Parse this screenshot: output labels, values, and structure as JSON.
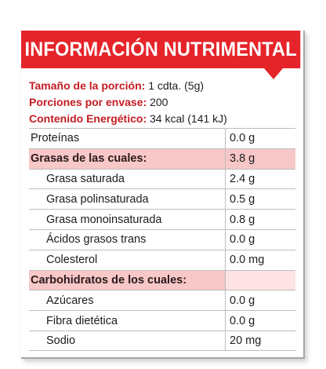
{
  "title": "INFORMACIÓN NUTRIMENTAL",
  "colors": {
    "banner": "#e5242a",
    "label_red": "#c41c22",
    "highlight": "#f8c7c7"
  },
  "header": {
    "serving_label": "Tamaño de la porción:",
    "serving_value": "1 cdta. (5g)",
    "portions_label": "Porciones por envase:",
    "portions_value": "200",
    "energy_label": "Contenido Energético:",
    "energy_value": "34 kcal (141 kJ)"
  },
  "rows": [
    {
      "name": "Proteínas",
      "value": "0.0 g"
    },
    {
      "name": "Grasas de las cuales:",
      "value": "3.8 g"
    },
    {
      "name": "Grasa saturada",
      "value": "2.4 g"
    },
    {
      "name": "Grasa polinsaturada",
      "value": "0.5 g"
    },
    {
      "name": "Grasa monoinsaturada",
      "value": "0.8 g"
    },
    {
      "name": "Ácidos grasos trans",
      "value": "0.0 g"
    },
    {
      "name": "Colesterol",
      "value": "0.0 mg"
    },
    {
      "name": "Carbohidratos de los cuales:",
      "value": ""
    },
    {
      "name": "Azúcares",
      "value": "0.0 g"
    },
    {
      "name": "Fibra dietética",
      "value": "0.0 g"
    },
    {
      "name": "Sodio",
      "value": "20 mg"
    }
  ]
}
